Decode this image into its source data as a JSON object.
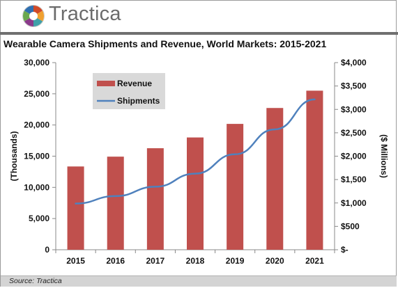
{
  "brand": {
    "name": "Tractica",
    "colors": [
      "#d14a27",
      "#f0a030",
      "#3fa0a8",
      "#8a3a8a",
      "#6aa84f",
      "#2f6fb0"
    ]
  },
  "source": "Source: Tractica",
  "chart_data": {
    "type": "bar",
    "title": "Wearable Camera Shipments and Revenue, World Markets: 2015-2021",
    "categories": [
      "2015",
      "2016",
      "2017",
      "2018",
      "2019",
      "2020",
      "2021"
    ],
    "series": [
      {
        "name": "Revenue",
        "type": "bar",
        "axis": "right",
        "color": "#c0504d",
        "values": [
          1780,
          1990,
          2170,
          2400,
          2690,
          3030,
          3400
        ]
      },
      {
        "name": "Shipments",
        "type": "line",
        "axis": "left",
        "color": "#4f81bd",
        "values": [
          7400,
          8600,
          10100,
          12200,
          15300,
          19300,
          24100
        ]
      }
    ],
    "ylabel_left": "(Thousands)",
    "ylabel_right": "($ Millions)",
    "ylim_left": [
      0,
      30000
    ],
    "ylim_right": [
      0,
      4000
    ],
    "left_ticks": [
      "0",
      "5,000",
      "10,000",
      "15,000",
      "20,000",
      "25,000",
      "30,000"
    ],
    "right_ticks": [
      "$-",
      "$500",
      "$1,000",
      "$1,500",
      "$2,000",
      "$2,500",
      "$3,000",
      "$3,500",
      "$4,000"
    ],
    "grid": false,
    "legend": "top-left"
  }
}
